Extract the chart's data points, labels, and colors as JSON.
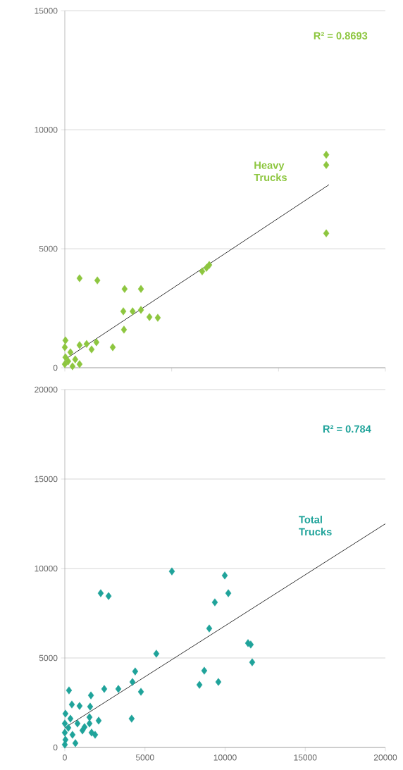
{
  "chart_data": [
    {
      "type": "scatter",
      "xlim": [
        0,
        20000
      ],
      "xticks": [
        0,
        {
          "value": 6667,
          "label": null
        },
        {
          "value": 13333,
          "label": null
        },
        20000
      ],
      "ylim": [
        0,
        15000
      ],
      "yticks": [
        0,
        5000,
        10000,
        15000
      ],
      "tick_labels": "y",
      "grid": "y",
      "marker": "diamond",
      "annotations": [
        "R² = 0.8693"
      ],
      "series": [
        {
          "name": "Heavy Trucks",
          "color": "#8dc63f",
          "x": [
            16310,
            16310,
            16310,
            8570,
            8840,
            9010,
            920,
            2030,
            3730,
            4750,
            3650,
            4230,
            4750,
            5280,
            5800,
            3690,
            2990,
            1970,
            1670,
            1360,
            920,
            40,
            0,
            350,
            40,
            650,
            0,
            480,
            920,
            210
          ],
          "values": [
            8950,
            8520,
            5650,
            4050,
            4200,
            4320,
            3760,
            3670,
            3310,
            3310,
            2370,
            2370,
            2430,
            2130,
            2100,
            1600,
            860,
            1070,
            770,
            1000,
            950,
            1150,
            860,
            650,
            440,
            350,
            150,
            60,
            150,
            270
          ]
        },
        {
          "type": "line",
          "color": "#000000",
          "marker": "none",
          "x": [
            40,
            16480
          ],
          "values": [
            360,
            7690
          ]
        }
      ]
    },
    {
      "type": "scatter",
      "xlim": [
        0,
        20000
      ],
      "xticks": [
        0,
        5000,
        10000,
        15000,
        20000
      ],
      "ylim": [
        0,
        20000
      ],
      "yticks": [
        0,
        5000,
        10000,
        15000,
        20000
      ],
      "grid": "y",
      "marker": "diamond",
      "annotations": [
        "R² = 0.784"
      ],
      "series": [
        {
          "name": "Total Trucks",
          "color": "#1fa39a",
          "x": [
            5710,
            4390,
            4220,
            4750,
            3340,
            2460,
            1630,
            260,
            440,
            920,
            1580,
            4170,
            2110,
            1890,
            1670,
            1540,
            660,
            8400,
            8700,
            9580,
            11430,
            11600,
            11690,
            2240,
            2730,
            6680,
            9980,
            10200,
            9360,
            9010,
            40,
            350,
            0,
            790,
            220,
            1100,
            0,
            480,
            40,
            0,
            1230,
            1540
          ],
          "values": [
            5240,
            4250,
            3660,
            3110,
            3270,
            3270,
            2910,
            3190,
            2400,
            2320,
            2280,
            1610,
            1500,
            710,
            830,
            1690,
            240,
            3500,
            4290,
            3660,
            5830,
            5750,
            4760,
            8620,
            8460,
            9840,
            9610,
            8620,
            8110,
            6650,
            1890,
            1610,
            1340,
            1340,
            1100,
            950,
            830,
            710,
            430,
            160,
            1140,
            1340
          ]
        },
        {
          "type": "line",
          "color": "#000000",
          "marker": "none",
          "x": [
            0,
            20000
          ],
          "values": [
            1100,
            12500
          ]
        }
      ]
    }
  ]
}
